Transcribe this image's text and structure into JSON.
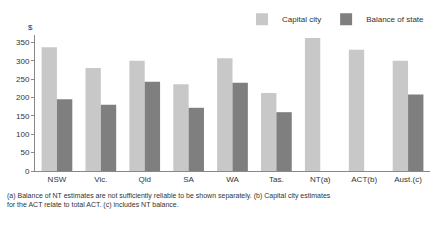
{
  "chart_data": {
    "type": "bar",
    "ylabel": "$",
    "categories": [
      "NSW",
      "Vic.",
      "Qld",
      "SA",
      "WA",
      "Tas.",
      "NT(a)",
      "ACT(b)",
      "Aust.(c)"
    ],
    "series": [
      {
        "name": "Capital city",
        "color": "#c8c8c8",
        "values": [
          337,
          280,
          300,
          236,
          307,
          212,
          362,
          330,
          300
        ]
      },
      {
        "name": "Balance of state",
        "color": "#7f7f7f",
        "values": [
          195,
          180,
          243,
          172,
          240,
          160,
          null,
          null,
          208
        ]
      }
    ],
    "ylim": [
      0,
      370
    ],
    "yticks": [
      0,
      50,
      100,
      150,
      200,
      250,
      300,
      350
    ],
    "grid": false,
    "legend": "top right",
    "notes": [
      "(a) Balance of NT estimates are not sufficiently reliable to be shown separately. (b) Capital city estimates",
      "for the ACT relate to total ACT. (c) includes NT balance."
    ]
  }
}
